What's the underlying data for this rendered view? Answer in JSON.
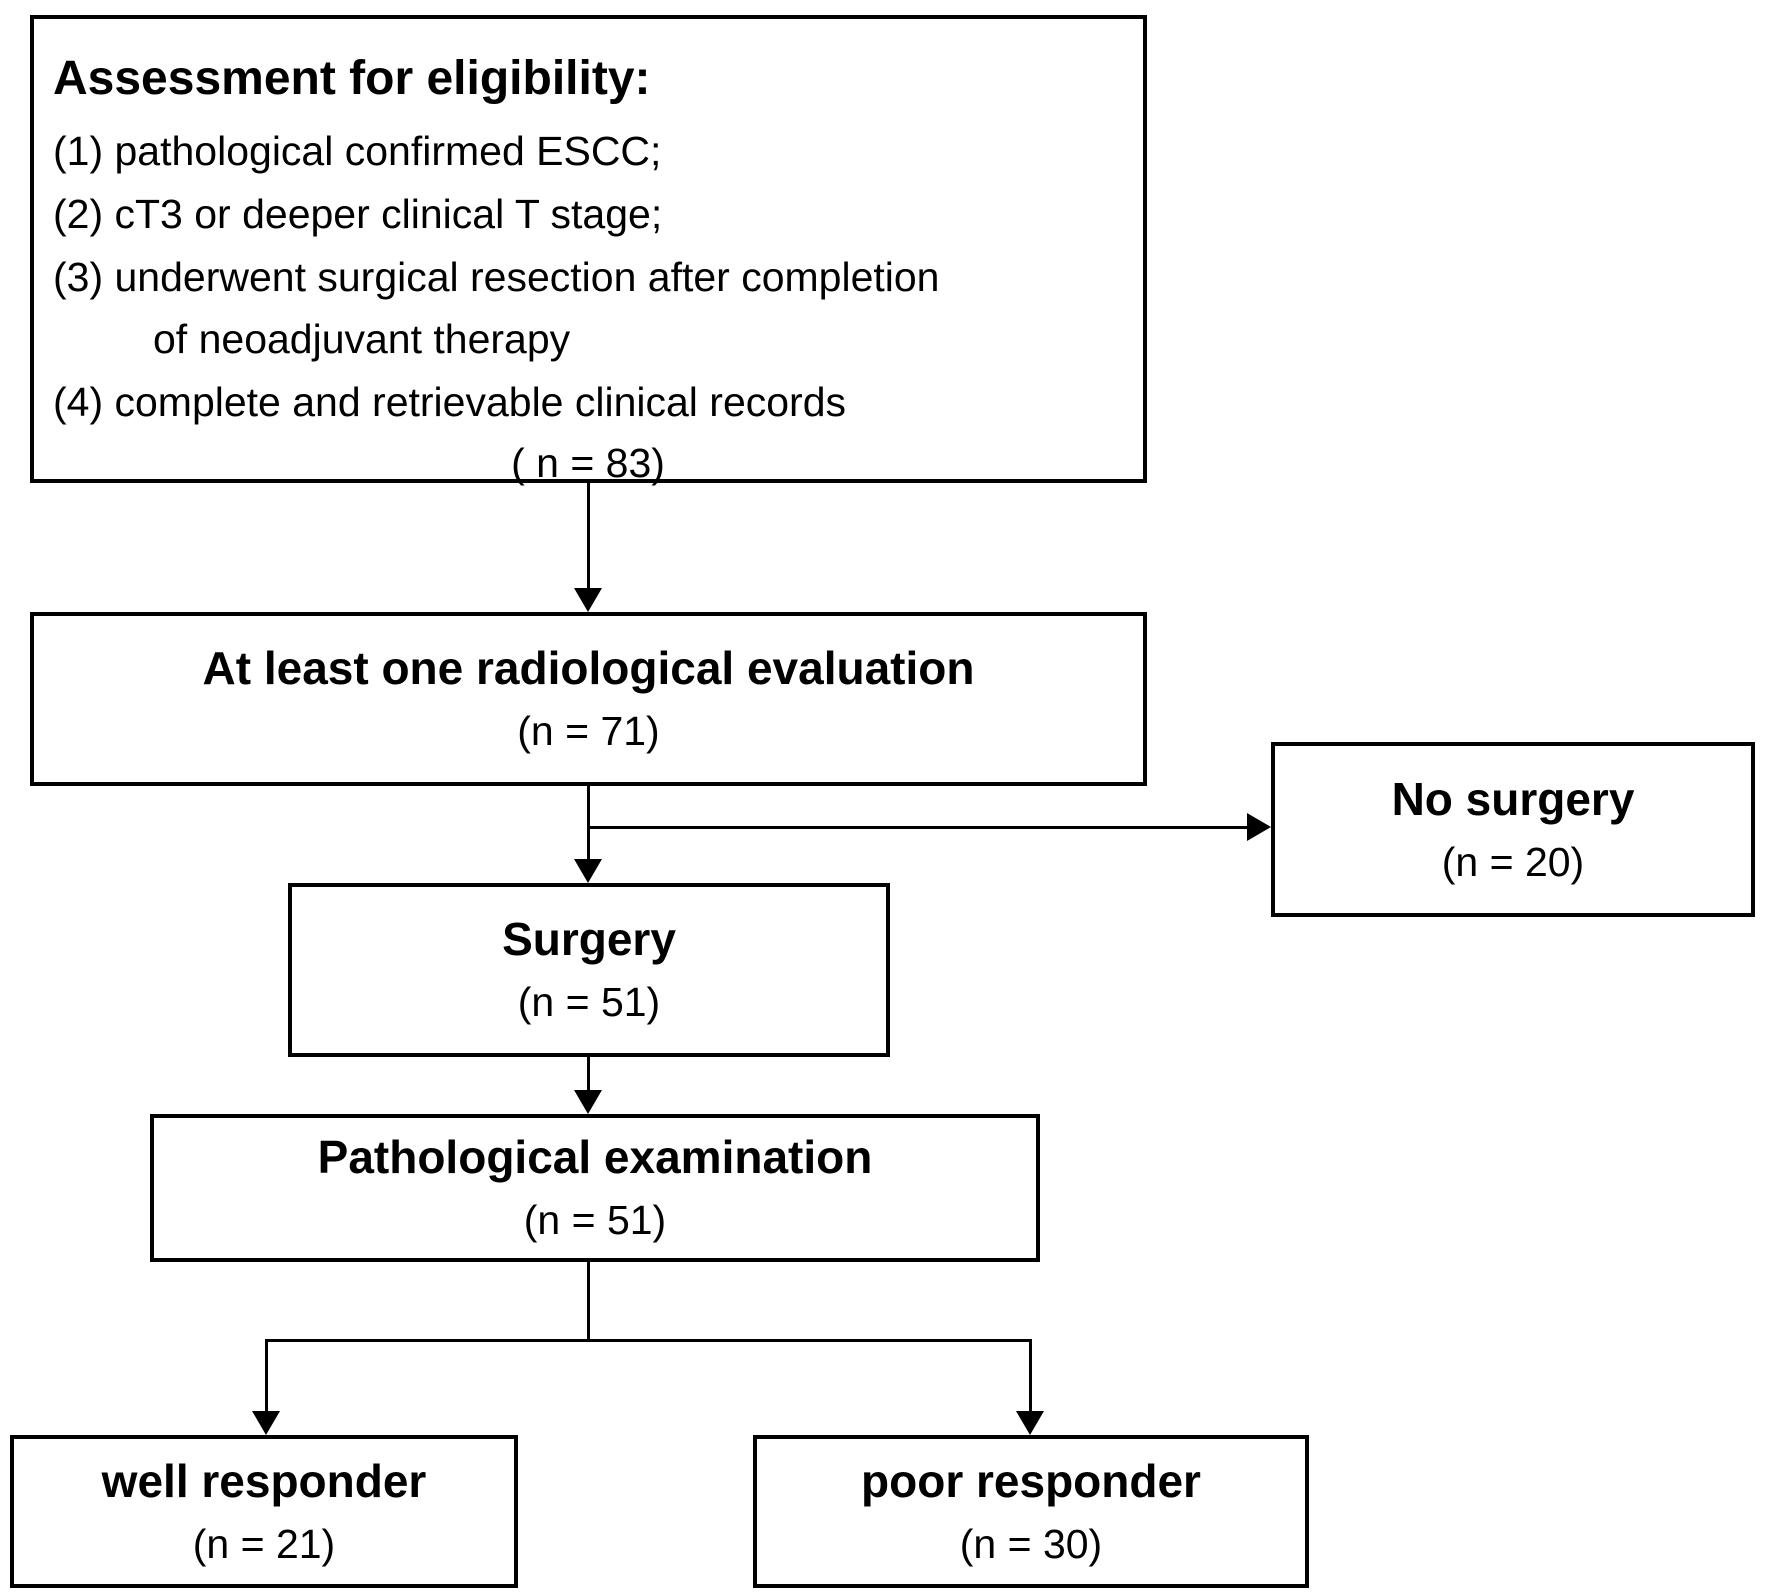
{
  "colors": {
    "background": "#ffffff",
    "border": "#000000",
    "text": "#000000"
  },
  "flow": {
    "eligibility": {
      "title": "Assessment for eligibility:",
      "criteria": [
        "(1) pathological confirmed ESCC;",
        "(2) cT3 or deeper clinical T stage;",
        "(3) underwent surgical resection after completion",
        "of neoadjuvant therapy",
        "(4) complete and retrievable clinical records"
      ],
      "n_label": "( n = 83)"
    },
    "radiological": {
      "title": "At least one radiological evaluation",
      "n_label": "(n = 71)"
    },
    "no_surgery": {
      "title": "No surgery",
      "n_label": "(n = 20)"
    },
    "surgery": {
      "title": "Surgery",
      "n_label": "(n = 51)"
    },
    "pathological": {
      "title": "Pathological examination",
      "n_label": "(n = 51)"
    },
    "well_responder": {
      "title": "well responder",
      "n_label": "(n = 21)"
    },
    "poor_responder": {
      "title": "poor responder",
      "n_label": "(n = 30)"
    }
  }
}
